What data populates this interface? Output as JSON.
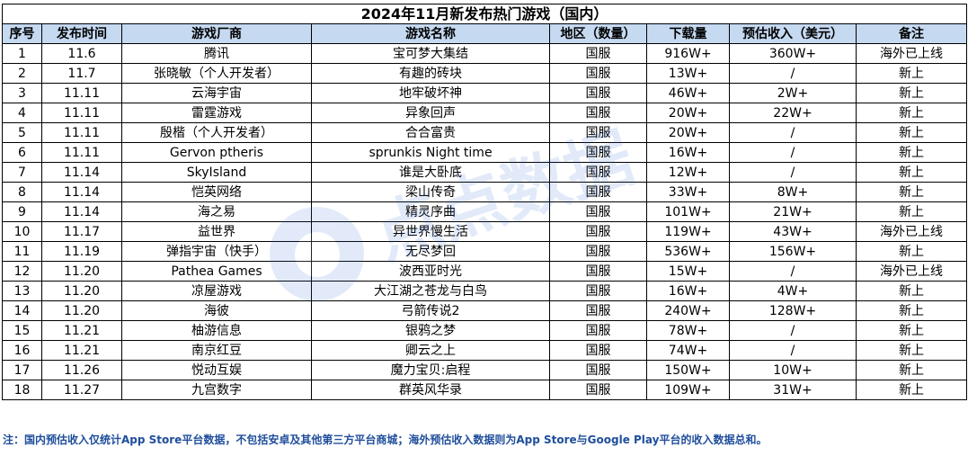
{
  "title": "2024年11月新发布热门游戏（国内）",
  "headers": [
    "序号",
    "发布时间",
    "游戏厂商",
    "游戏名称",
    "地区（数量）",
    "下载量",
    "预估收入（美元）",
    "备注"
  ],
  "rows": [
    [
      "1",
      "11.6",
      "腾讯",
      "宝可梦大集结",
      "国服",
      "916W+",
      "360W+",
      "海外已上线"
    ],
    [
      "2",
      "11.7",
      "张晓敏（个人开发者）",
      "有趣的砖块",
      "国服",
      "13W+",
      "/",
      "新上"
    ],
    [
      "3",
      "11.11",
      "云海宇宙",
      "地牢破坏神",
      "国服",
      "46W+",
      "2W+",
      "新上"
    ],
    [
      "4",
      "11.11",
      "雷霆游戏",
      "异象回声",
      "国服",
      "20W+",
      "22W+",
      "新上"
    ],
    [
      "5",
      "11.11",
      "殷楷（个人开发者）",
      "合合富贵",
      "国服",
      "20W+",
      "/",
      "新上"
    ],
    [
      "6",
      "11.11",
      "Gervon ptheris",
      "sprunkis Night time",
      "国服",
      "16W+",
      "/",
      "新上"
    ],
    [
      "7",
      "11.14",
      "SkyIsland",
      "谁是大卧底",
      "国服",
      "12W+",
      "/",
      "新上"
    ],
    [
      "8",
      "11.14",
      "恺英网络",
      "梁山传奇",
      "国服",
      "33W+",
      "8W+",
      "新上"
    ],
    [
      "9",
      "11.14",
      "海之易",
      "精灵序曲",
      "国服",
      "101W+",
      "21W+",
      "新上"
    ],
    [
      "10",
      "11.17",
      "益世界",
      "异世界慢生活",
      "国服",
      "119W+",
      "43W+",
      "海外已上线"
    ],
    [
      "11",
      "11.19",
      "弹指宇宙（快手）",
      "无尽梦回",
      "国服",
      "536W+",
      "156W+",
      "新上"
    ],
    [
      "12",
      "11.20",
      "Pathea Games",
      "波西亚时光",
      "国服",
      "15W+",
      "/",
      "海外已上线"
    ],
    [
      "13",
      "11.20",
      "凉屋游戏",
      "大江湖之苍龙与白鸟",
      "国服",
      "16W+",
      "4W+",
      "新上"
    ],
    [
      "14",
      "11.20",
      "海彼",
      "弓箭传说2",
      "国服",
      "240W+",
      "128W+",
      "新上"
    ],
    [
      "15",
      "11.21",
      "柚游信息",
      "银鸦之梦",
      "国服",
      "78W+",
      "/",
      "新上"
    ],
    [
      "16",
      "11.21",
      "南京红豆",
      "卿云之上",
      "国服",
      "74W+",
      "/",
      "新上"
    ],
    [
      "17",
      "11.26",
      "悦动互娱",
      "魔力宝贝:启程",
      "国服",
      "150W+",
      "10W+",
      "新上"
    ],
    [
      "18",
      "11.27",
      "九宫数字",
      "群英风华录",
      "国服",
      "109W+",
      "31W+",
      "新上"
    ]
  ],
  "note": "注：国内预估收入仅统计App Store平台数据，不包括安卓及其他第三方平台商城；海外预估收入数据则为App Store与Google Play平台的收入数据总和。",
  "watermark_text": "点点数据",
  "colors": {
    "header_bg": "#c5d9f1",
    "note_text": "#1f4e9c",
    "watermark": "#2a63d6"
  }
}
